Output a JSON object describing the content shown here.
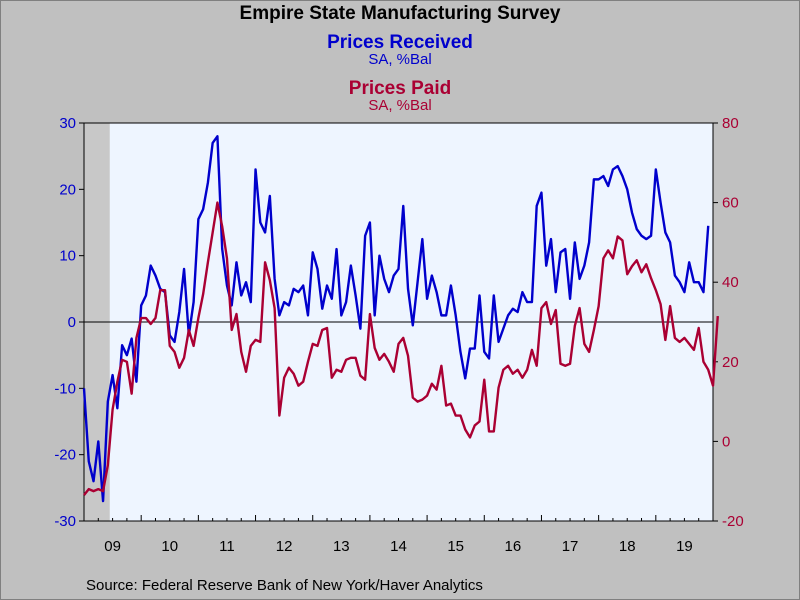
{
  "chart_data": {
    "type": "line",
    "title": "Empire State Manufacturing Survey",
    "series": [
      {
        "name": "Prices Received",
        "units": "SA, %Bal",
        "axis": "left",
        "color": "#0000cc",
        "values": [
          -10,
          -21,
          -24,
          -18,
          -27,
          -12,
          -8,
          -13,
          -3.5,
          -5,
          -2.5,
          -9,
          2.5,
          4,
          8.5,
          7,
          5,
          4.5,
          -2,
          -3,
          1.5,
          8,
          -2,
          3,
          15.5,
          17,
          21,
          27,
          28,
          11,
          5.5,
          2.5,
          9,
          4,
          6,
          3,
          23,
          15,
          13.5,
          19,
          6.5,
          1,
          3,
          2.5,
          5,
          4.5,
          5.5,
          1,
          10.5,
          8,
          2,
          5.5,
          3.5,
          11,
          1,
          3,
          8.5,
          4,
          -1,
          13,
          15,
          1,
          10,
          6.5,
          4.5,
          7,
          8,
          17.5,
          5,
          -0.5,
          6,
          12.5,
          3.5,
          7,
          4.5,
          1,
          1,
          5.5,
          1,
          -4.5,
          -8.5,
          -4,
          -4,
          4,
          -4.5,
          -5.5,
          4,
          -3,
          -1,
          1,
          2,
          1.5,
          4.5,
          3,
          3,
          17.5,
          19.5,
          8.5,
          12.5,
          4.5,
          10.5,
          11,
          3.5,
          12,
          6.5,
          8.5,
          12,
          21.5,
          21.5,
          22,
          20.5,
          23,
          23.5,
          22,
          20,
          16.5,
          14,
          13,
          12.5,
          13,
          23,
          18,
          13.5,
          12,
          7,
          6,
          4.5,
          9,
          6,
          6,
          4.5,
          14.5
        ]
      },
      {
        "name": "Prices Paid",
        "units": "SA, %Bal",
        "axis": "right",
        "color": "#aa0033",
        "values": [
          -13.5,
          -12,
          -12.5,
          -12,
          -12.5,
          -6,
          8,
          15,
          20.5,
          20,
          12,
          26,
          31,
          31,
          29.5,
          31,
          38,
          38,
          24,
          22.5,
          18.5,
          21,
          28,
          24,
          31,
          37,
          45,
          52.5,
          60,
          54,
          46,
          28,
          32,
          22.5,
          17.5,
          24,
          25.5,
          25,
          45,
          40.5,
          33.5,
          6.5,
          16,
          18.5,
          17,
          14,
          15,
          20,
          24.5,
          24,
          28,
          28.5,
          16,
          18,
          17.5,
          20.5,
          21,
          21,
          16.5,
          15.5,
          32,
          23.5,
          20.5,
          22,
          20,
          17.5,
          24.5,
          26,
          21.5,
          11,
          10,
          10.5,
          11.5,
          14.5,
          13,
          19,
          9,
          9.5,
          6.5,
          6.5,
          3,
          1,
          4,
          5,
          15.5,
          2.5,
          2.5,
          13.5,
          18,
          19,
          17,
          18,
          16,
          18,
          23,
          19,
          33.5,
          35,
          29.5,
          33,
          19.5,
          19,
          19.5,
          29,
          33.5,
          24.5,
          22.5,
          28,
          34,
          46,
          48,
          46,
          51.5,
          50.5,
          42,
          44,
          45.5,
          42.5,
          44.5,
          41,
          38,
          34.5,
          25.5,
          34,
          26,
          25,
          26,
          24.5,
          23,
          28.5,
          20,
          18,
          14,
          31.5
        ]
      }
    ],
    "x_start": "2009-01",
    "x_frequency": "monthly",
    "x_tick_labels": [
      "09",
      "10",
      "11",
      "12",
      "13",
      "14",
      "15",
      "16",
      "17",
      "18",
      "19"
    ],
    "left_axis": {
      "ticks": [
        -30,
        -20,
        -10,
        0,
        10,
        20,
        30
      ],
      "ylim": [
        -30,
        30
      ]
    },
    "right_axis": {
      "ticks": [
        -20,
        0,
        20,
        40,
        60,
        80
      ],
      "ylim": [
        -20,
        80
      ]
    },
    "reference_line": 0,
    "shaded_region": {
      "label": "recession",
      "start": "2009-01",
      "end": "2009-06"
    }
  },
  "titles": {
    "main": "Empire State Manufacturing Survey",
    "series1": "Prices Received",
    "series1_units": "SA, %Bal",
    "series2": "Prices Paid",
    "series2_units": "SA, %Bal"
  },
  "source": "Source:  Federal Reserve Bank of New York/Haver Analytics",
  "colors": {
    "background": "#c0c0c0",
    "plot_background": "#eef5ff",
    "recession": "#c8c8c8",
    "left_axis": "#0000cc",
    "right_axis": "#aa0033"
  }
}
